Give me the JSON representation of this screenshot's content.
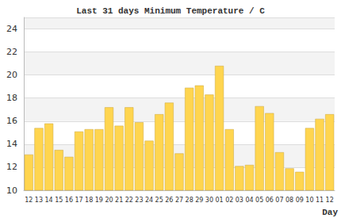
{
  "chart_data": {
    "type": "bar",
    "title": "Last 31 days Minimum Temperature / C",
    "x_label": "Day",
    "categories": [
      "12",
      "13",
      "14",
      "15",
      "16",
      "17",
      "18",
      "19",
      "20",
      "21",
      "22",
      "23",
      "24",
      "25",
      "26",
      "27",
      "28",
      "29",
      "30",
      "01",
      "02",
      "03",
      "04",
      "05",
      "06",
      "07",
      "08",
      "09",
      "10",
      "11",
      "12"
    ],
    "values": [
      13.1,
      15.4,
      15.8,
      13.5,
      12.9,
      15.1,
      15.3,
      15.3,
      17.2,
      15.6,
      17.2,
      15.9,
      14.3,
      16.6,
      17.6,
      13.2,
      18.9,
      19.1,
      18.3,
      20.8,
      15.3,
      12.1,
      12.2,
      17.3,
      16.7,
      13.3,
      11.9,
      11.6,
      15.4,
      16.2,
      16.6
    ],
    "color": "#ffd54f",
    "ylim": [
      10,
      25
    ],
    "yticks": [
      10,
      12,
      14,
      16,
      18,
      20,
      22,
      24
    ],
    "grid": true
  }
}
